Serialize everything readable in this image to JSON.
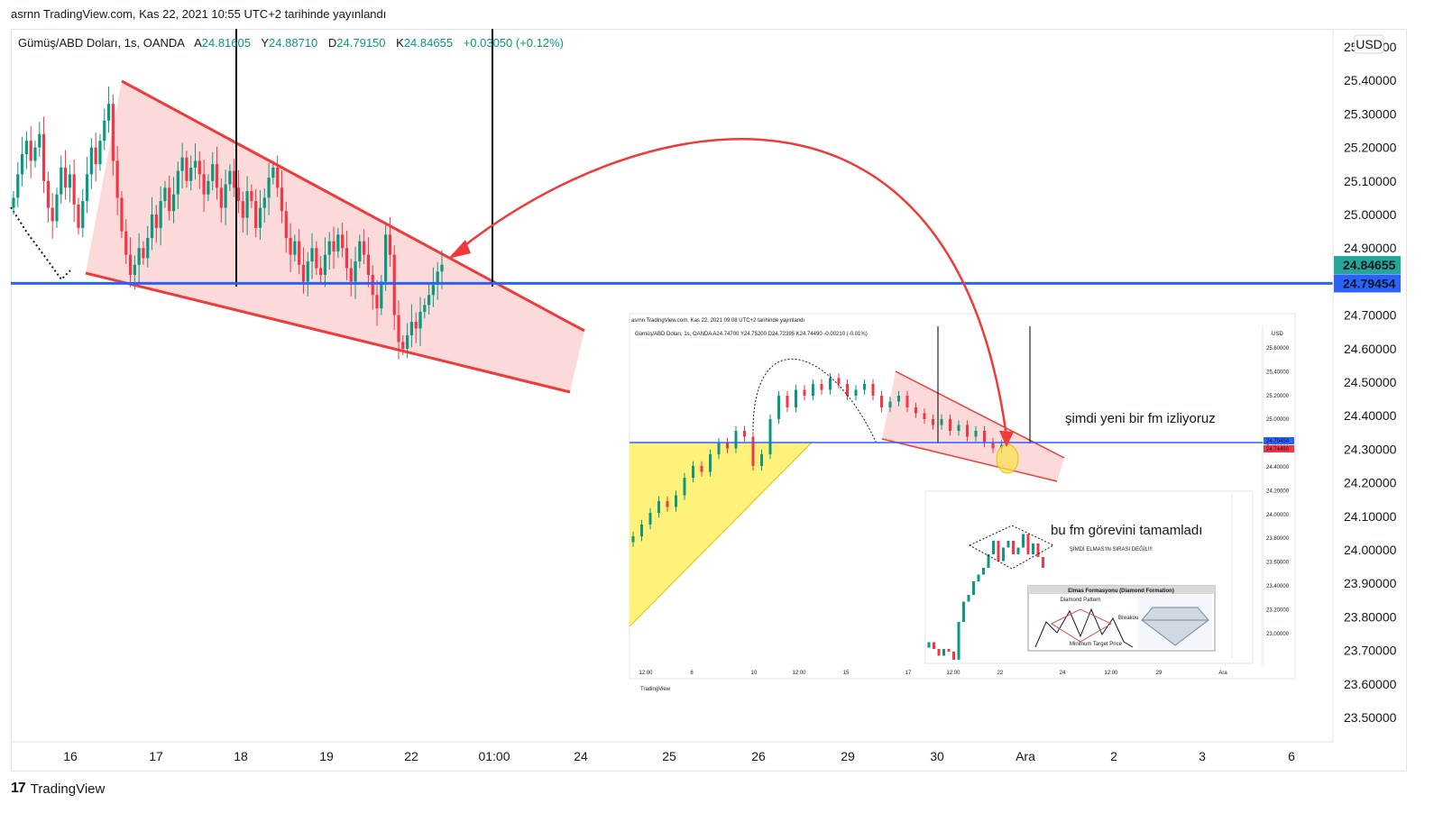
{
  "header": {
    "published": "asrnn TradingView.com, Kas 22, 2021 10:55 UTC+2 tarihinde yayınlandı"
  },
  "legend": {
    "symbol": "Gümüş/ABD Doları, 1s, OANDA",
    "a_label": "A",
    "a_value": "24.81605",
    "y_label": "Y",
    "y_value": "24.88710",
    "d_label": "D",
    "d_value": "24.79150",
    "k_label": "K",
    "k_value": "24.84655",
    "change": "+0.03050 (+0.12%)"
  },
  "colors": {
    "up": "#089981",
    "down": "#f23645",
    "wedge_fill": "#fcd3d3",
    "wedge_line": "#f03a3a",
    "level_line": "#2962ff",
    "price_badge": "#26a69a"
  },
  "currency": "USD",
  "price_badges": {
    "last": "24.84655",
    "level": "24.79454"
  },
  "footer": {
    "logo_mark": "17",
    "logo_text": "TradingView"
  },
  "chart_data": {
    "type": "candlestick",
    "title": "Gümüş/ABD Doları, 1s, OANDA",
    "y_axis": {
      "ticks": [
        "25.50000",
        "25.40000",
        "25.30000",
        "25.20000",
        "25.10000",
        "25.00000",
        "24.90000",
        "24.80000",
        "24.70000",
        "24.60000",
        "24.50000",
        "24.40000",
        "24.30000",
        "24.20000",
        "24.10000",
        "24.00000",
        "23.90000",
        "23.80000",
        "23.70000",
        "23.60000",
        "23.50000"
      ],
      "ylim": [
        23.45,
        25.55
      ],
      "scale": "linear",
      "side": "right"
    },
    "x_axis": {
      "ticks": [
        "16",
        "17",
        "18",
        "19",
        "22",
        "01:00",
        "24",
        "25",
        "26",
        "29",
        "30",
        "Ara",
        "2",
        "3",
        "6"
      ]
    },
    "horizontal_level": 24.79454,
    "last_price": 24.84655,
    "candles_close": [
      25.05,
      25.12,
      25.18,
      25.22,
      25.16,
      25.2,
      25.24,
      25.1,
      25.02,
      24.98,
      25.06,
      25.14,
      25.08,
      25.12,
      25.03,
      24.96,
      25.04,
      25.12,
      25.2,
      25.15,
      25.22,
      25.28,
      25.33,
      25.16,
      25.05,
      24.95,
      24.88,
      24.82,
      24.85,
      24.9,
      24.87,
      24.93,
      25.0,
      24.96,
      25.04,
      25.08,
      25.01,
      25.06,
      25.13,
      25.17,
      25.1,
      25.14,
      25.16,
      25.12,
      25.06,
      25.1,
      25.15,
      25.08,
      25.02,
      25.09,
      25.13,
      25.08,
      25.04,
      24.99,
      25.07,
      25.04,
      24.96,
      25.02,
      25.05,
      25.11,
      25.14,
      25.08,
      25.01,
      24.93,
      24.88,
      24.92,
      24.85,
      24.8,
      24.86,
      24.9,
      24.84,
      24.82,
      24.88,
      24.92,
      24.89,
      24.94,
      24.9,
      24.84,
      24.8,
      24.86,
      24.92,
      24.88,
      24.82,
      24.76,
      24.72,
      24.8,
      24.94,
      24.88,
      24.7,
      24.62,
      24.6,
      24.64,
      24.68,
      24.66,
      24.71,
      24.73,
      24.76,
      24.79,
      24.83,
      24.85
    ],
    "annotations": [
      {
        "text": "şimdi yeni bir fm izliyoruz"
      },
      {
        "text": "bu fm görevini tamamladı"
      },
      {
        "text": "ŞİMDİ ELMAS'IN SIRASI DEĞİL!!!"
      }
    ],
    "inset_chart": {
      "published": "asrnn TradingView.com, Kas 22, 2021 09:08 UTC+2 tarihinde yayınlandı",
      "legend": "Gümüş/ABD Doları, 1s, OANDA A24.74700 Y24.75200 D24.72395 K24.74490 -0.00210 (-0.01%)",
      "currency": "USD",
      "y_ticks": [
        "25.60000",
        "25.40000",
        "25.20000",
        "25.00000",
        "24.60000",
        "24.40000",
        "24.20000",
        "24.00000",
        "23.80000",
        "23.60000",
        "23.40000",
        "23.20000",
        "23.00000"
      ],
      "x_ticks": [
        "12:00",
        "8",
        "10",
        "12:00",
        "15",
        "17",
        "12:00",
        "22",
        "24",
        "12:00",
        "29",
        "Ara"
      ],
      "badges": [
        "24.79454",
        "24.74490"
      ],
      "logo": "TradingView"
    },
    "inset_inset": {
      "title": "Elmas Formasyonu (Diamond Formation)",
      "sub_title": "Diamond Pattern",
      "labels": [
        "Breakout",
        "Minimum Target Price"
      ]
    }
  }
}
